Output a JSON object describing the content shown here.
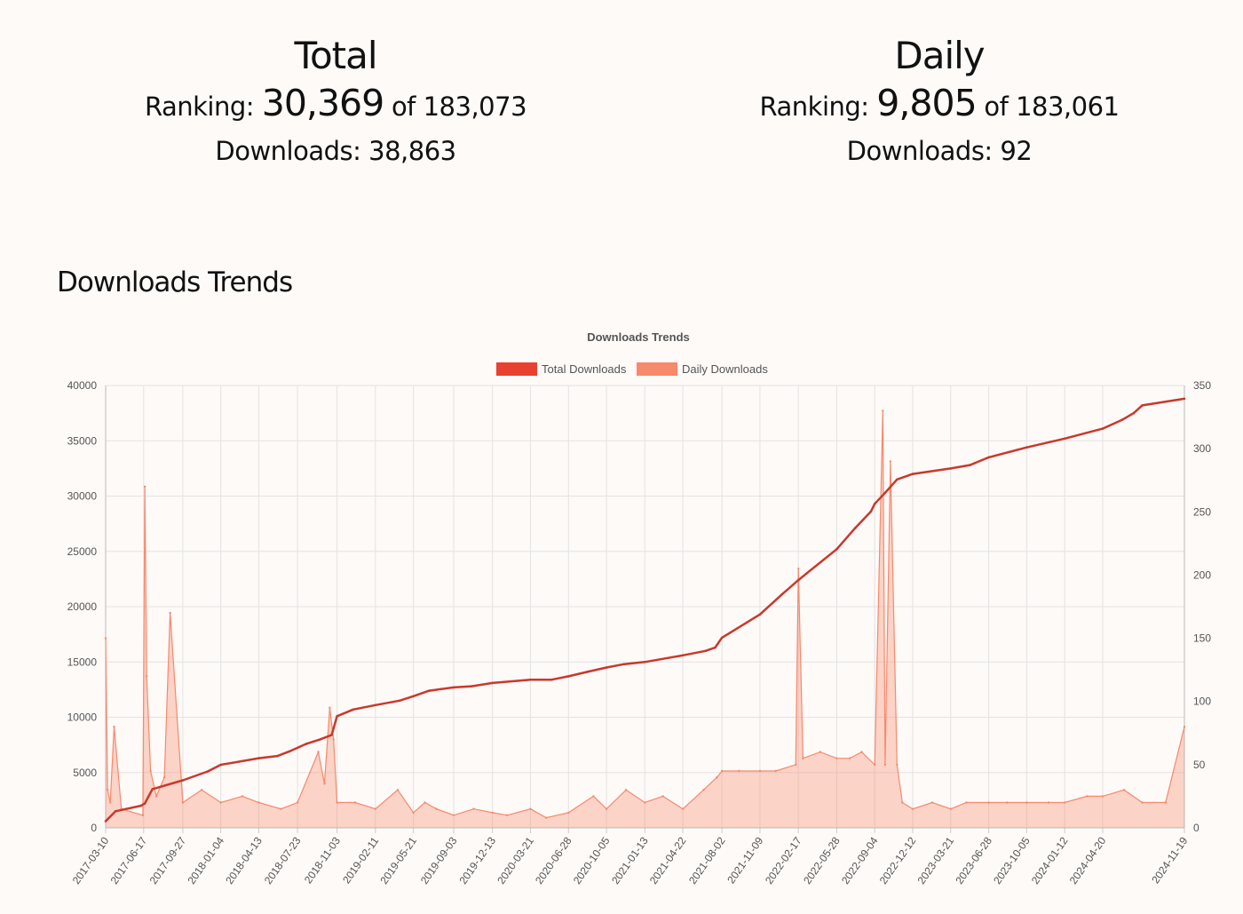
{
  "total": {
    "title": "Total",
    "ranking_label": "Ranking:",
    "rank": "30,369",
    "of_label": "of",
    "rank_total": "183,073",
    "downloads_label": "Downloads:",
    "downloads": "38,863"
  },
  "daily": {
    "title": "Daily",
    "ranking_label": "Ranking:",
    "rank": "9,805",
    "of_label": "of",
    "rank_total": "183,061",
    "downloads_label": "Downloads:",
    "downloads": "92"
  },
  "section_title": "Downloads Trends",
  "chart_data": {
    "type": "line",
    "title": "Downloads Trends",
    "legend_position": "top",
    "grid": true,
    "x_start": "2017-03-10",
    "x_end": "2024-11-19",
    "x_ticks": [
      "2017-03-10",
      "2017-06-17",
      "2017-09-27",
      "2018-01-04",
      "2018-04-13",
      "2018-07-23",
      "2018-11-03",
      "2019-02-11",
      "2019-05-21",
      "2019-09-03",
      "2019-12-13",
      "2020-03-21",
      "2020-06-28",
      "2020-10-05",
      "2021-01-13",
      "2021-04-22",
      "2021-08-02",
      "2021-11-09",
      "2022-02-17",
      "2022-05-28",
      "2022-09-04",
      "2022-12-12",
      "2023-03-21",
      "2023-06-28",
      "2023-10-05",
      "2024-01-12",
      "2024-04-20",
      "2024-11-19"
    ],
    "y_left": {
      "min": 0,
      "max": 40000,
      "ticks": [
        "0",
        "5000",
        "10000",
        "15000",
        "20000",
        "25000",
        "30000",
        "35000",
        "40000"
      ]
    },
    "y_right": {
      "min": 0,
      "max": 350,
      "ticks": [
        "0",
        "50",
        "100",
        "150",
        "200",
        "250",
        "300",
        "350"
      ]
    },
    "series": [
      {
        "name": "Total Downloads",
        "axis": "left",
        "color": "#e8412f",
        "x": [
          "2017-03-10",
          "2017-04-05",
          "2017-06-10",
          "2017-06-20",
          "2017-07-10",
          "2017-09-27",
          "2017-12-01",
          "2018-01-04",
          "2018-04-13",
          "2018-06-01",
          "2018-07-01",
          "2018-08-15",
          "2018-09-20",
          "2018-10-20",
          "2018-11-03",
          "2018-12-15",
          "2019-02-11",
          "2019-04-15",
          "2019-05-21",
          "2019-07-01",
          "2019-09-03",
          "2019-10-20",
          "2019-12-13",
          "2020-03-21",
          "2020-05-15",
          "2020-06-28",
          "2020-08-15",
          "2020-10-05",
          "2020-11-20",
          "2021-01-13",
          "2021-04-22",
          "2021-06-20",
          "2021-07-15",
          "2021-08-02",
          "2021-11-09",
          "2022-01-05",
          "2022-02-17",
          "2022-03-10",
          "2022-05-28",
          "2022-07-15",
          "2022-08-25",
          "2022-09-04",
          "2022-10-01",
          "2022-11-01",
          "2022-12-12",
          "2023-03-21",
          "2023-05-10",
          "2023-06-28",
          "2023-10-05",
          "2024-01-12",
          "2024-04-20",
          "2024-06-10",
          "2024-07-10",
          "2024-08-01",
          "2024-11-19"
        ],
        "values": [
          600,
          1500,
          2000,
          2200,
          3500,
          4300,
          5100,
          5700,
          6300,
          6500,
          6900,
          7600,
          8000,
          8400,
          10100,
          10700,
          11100,
          11500,
          11900,
          12400,
          12700,
          12800,
          13100,
          13400,
          13400,
          13700,
          14100,
          14500,
          14800,
          15000,
          15600,
          16000,
          16300,
          17200,
          19300,
          21100,
          22400,
          23000,
          25200,
          27100,
          28600,
          29300,
          30300,
          31500,
          32000,
          32500,
          32800,
          33500,
          34400,
          35200,
          36100,
          36900,
          37500,
          38200,
          38800
        ]
      },
      {
        "name": "Daily Downloads",
        "axis": "right",
        "color": "#f7896c",
        "x": [
          "2017-03-10",
          "2017-03-15",
          "2017-03-22",
          "2017-04-01",
          "2017-04-20",
          "2017-06-15",
          "2017-06-20",
          "2017-06-25",
          "2017-07-05",
          "2017-07-20",
          "2017-08-10",
          "2017-08-25",
          "2017-09-27",
          "2017-11-15",
          "2018-01-04",
          "2018-03-01",
          "2018-04-13",
          "2018-06-10",
          "2018-07-23",
          "2018-09-15",
          "2018-10-01",
          "2018-10-15",
          "2018-10-25",
          "2018-11-03",
          "2018-12-20",
          "2019-02-11",
          "2019-04-10",
          "2019-05-21",
          "2019-06-20",
          "2019-07-20",
          "2019-09-03",
          "2019-10-25",
          "2019-12-13",
          "2020-01-20",
          "2020-03-21",
          "2020-05-01",
          "2020-06-28",
          "2020-09-01",
          "2020-10-05",
          "2020-11-25",
          "2021-01-13",
          "2021-03-01",
          "2021-04-22",
          "2021-06-15",
          "2021-07-20",
          "2021-08-02",
          "2021-09-15",
          "2021-11-09",
          "2021-12-20",
          "2022-02-10",
          "2022-02-17",
          "2022-03-01",
          "2022-04-15",
          "2022-05-28",
          "2022-07-01",
          "2022-08-01",
          "2022-09-04",
          "2022-09-25",
          "2022-10-01",
          "2022-10-15",
          "2022-11-01",
          "2022-11-15",
          "2022-12-12",
          "2023-02-01",
          "2023-03-21",
          "2023-05-01",
          "2023-06-28",
          "2023-08-15",
          "2023-10-05",
          "2023-12-01",
          "2024-01-12",
          "2024-03-10",
          "2024-04-20",
          "2024-06-15",
          "2024-08-01",
          "2024-10-01",
          "2024-11-19"
        ],
        "values": [
          150,
          30,
          20,
          80,
          15,
          10,
          270,
          120,
          45,
          25,
          40,
          170,
          20,
          30,
          20,
          25,
          20,
          15,
          20,
          60,
          35,
          95,
          70,
          20,
          20,
          15,
          30,
          12,
          20,
          15,
          10,
          15,
          12,
          10,
          15,
          8,
          12,
          25,
          15,
          30,
          20,
          25,
          15,
          30,
          40,
          45,
          45,
          45,
          45,
          50,
          205,
          55,
          60,
          55,
          55,
          60,
          50,
          330,
          50,
          290,
          50,
          20,
          15,
          20,
          15,
          20,
          20,
          20,
          20,
          20,
          20,
          25,
          25,
          30,
          20,
          20,
          80
        ]
      }
    ]
  }
}
